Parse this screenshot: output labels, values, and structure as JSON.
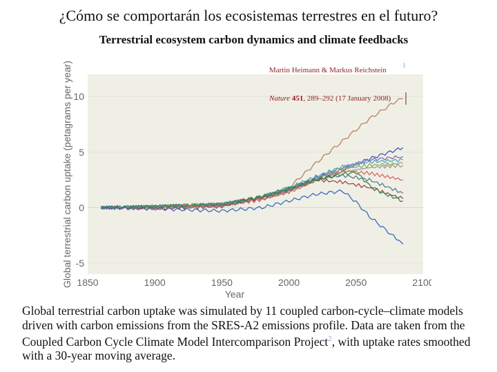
{
  "slide_title": "¿Cómo se comportarán los ecosistemas terrestres en el futuro?",
  "paper_title": "Terrestrial ecosystem carbon dynamics and climate feedbacks",
  "citation": {
    "authors": "Martin Heimann & Markus Reichstein",
    "author_ref": "1",
    "journal": "Nature",
    "volume": "451",
    "pages_date": ", 289–292 (17 January 2008)"
  },
  "caption": {
    "main": "Global terrestrial carbon uptake was simulated by 11 coupled carbon-cycle–climate models driven with carbon emissions from the SRES-A2 emissions profile. Data are taken from the Coupled Carbon Cycle Climate Model Intercomparison Project",
    "ref": "2",
    "tail": ", with uptake rates smoothed with a 30-year moving average."
  },
  "colors": {
    "plot_bg": "#f0efe6",
    "axis_text": "#666666"
  },
  "chart_data": {
    "type": "line",
    "xlabel": "Year",
    "ylabel": "Global terrestrial carbon uptake (petagrams per year)",
    "xlim": [
      1850,
      2100
    ],
    "ylim": [
      -6,
      12
    ],
    "xticks": [
      1850,
      1900,
      1950,
      2000,
      2050,
      2100
    ],
    "yticks": [
      -5,
      0,
      5,
      10
    ],
    "series": [
      {
        "color": "#b8805a",
        "x": [
          1860,
          1900,
          1950,
          1980,
          2000,
          2020,
          2040,
          2060,
          2080,
          2085
        ],
        "y": [
          0,
          0.1,
          0.3,
          1.0,
          1.8,
          4.0,
          6.0,
          8.0,
          9.6,
          9.8
        ]
      },
      {
        "color": "#4a56b8",
        "x": [
          1860,
          1900,
          1950,
          1980,
          2000,
          2020,
          2040,
          2060,
          2085
        ],
        "y": [
          0,
          0.1,
          0.3,
          0.9,
          1.6,
          2.6,
          3.4,
          4.4,
          5.4
        ]
      },
      {
        "color": "#7d6bb0",
        "x": [
          1860,
          1900,
          1950,
          1980,
          2000,
          2020,
          2040,
          2060,
          2085
        ],
        "y": [
          0,
          0.1,
          0.3,
          0.9,
          1.6,
          2.7,
          3.6,
          4.3,
          4.6
        ]
      },
      {
        "color": "#4aa9c6",
        "x": [
          1860,
          1900,
          1950,
          1980,
          2000,
          2020,
          2040,
          2060,
          2085
        ],
        "y": [
          0,
          0.1,
          0.3,
          1.0,
          1.8,
          2.8,
          3.7,
          4.1,
          4.3
        ]
      },
      {
        "color": "#8fae5a",
        "x": [
          1860,
          1900,
          1950,
          1980,
          2000,
          2020,
          2040,
          2060,
          2085
        ],
        "y": [
          0,
          0.1,
          0.3,
          0.8,
          1.5,
          2.6,
          3.5,
          3.8,
          4.0
        ]
      },
      {
        "color": "#9a9a9a",
        "x": [
          1860,
          1900,
          1950,
          1980,
          2000,
          2020,
          2040,
          2060,
          2085
        ],
        "y": [
          0,
          0.1,
          0.2,
          0.8,
          1.5,
          2.4,
          3.2,
          3.6,
          3.8
        ]
      },
      {
        "color": "#d46a6a",
        "x": [
          1860,
          1900,
          1950,
          1980,
          2000,
          2020,
          2040,
          2060,
          2085
        ],
        "y": [
          0,
          0.0,
          0.2,
          0.7,
          1.4,
          2.4,
          3.3,
          3.1,
          2.5
        ]
      },
      {
        "color": "#a04545",
        "x": [
          1860,
          1900,
          1950,
          1980,
          2000,
          2020,
          2040,
          2060,
          2085
        ],
        "y": [
          0,
          -0.1,
          0.1,
          0.9,
          1.6,
          2.5,
          2.3,
          1.8,
          0.8
        ]
      },
      {
        "color": "#4f7e8c",
        "x": [
          1860,
          1900,
          1950,
          1980,
          2000,
          2020,
          2040,
          2060,
          2085
        ],
        "y": [
          0,
          0.1,
          0.3,
          1.0,
          1.7,
          2.6,
          2.9,
          2.5,
          1.3
        ]
      },
      {
        "color": "#2f8a4a",
        "x": [
          1860,
          1900,
          1950,
          1980,
          2000,
          2020,
          2040,
          2050,
          2060,
          2070,
          2085
        ],
        "y": [
          0,
          0.1,
          0.3,
          1.0,
          1.7,
          2.5,
          3.0,
          3.2,
          2.0,
          1.3,
          0.6
        ]
      },
      {
        "color": "#3a6bbf",
        "x": [
          1860,
          1900,
          1950,
          1980,
          2000,
          2020,
          2040,
          2050,
          2060,
          2070,
          2080,
          2085
        ],
        "y": [
          0,
          -0.1,
          -0.3,
          0.0,
          0.6,
          1.2,
          1.5,
          0.5,
          -0.8,
          -1.8,
          -2.8,
          -3.3
        ]
      }
    ]
  }
}
